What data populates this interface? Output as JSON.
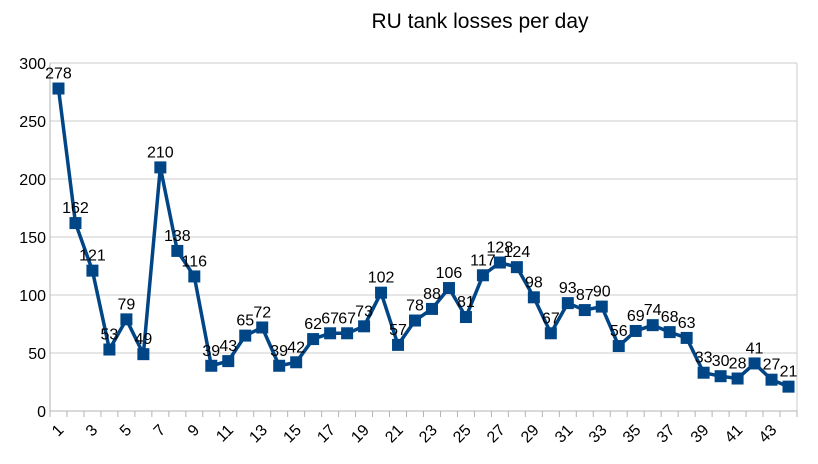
{
  "chart_data": {
    "type": "line",
    "title": "RU tank losses per day",
    "xlabel": "",
    "ylabel": "",
    "x": [
      1,
      2,
      3,
      4,
      5,
      6,
      7,
      8,
      9,
      10,
      11,
      12,
      13,
      14,
      15,
      16,
      17,
      18,
      19,
      20,
      21,
      22,
      23,
      24,
      25,
      26,
      27,
      28,
      29,
      30,
      31,
      32,
      33,
      34,
      35,
      36,
      37,
      38,
      39,
      40,
      41,
      42,
      43,
      44
    ],
    "x_tick_labels": [
      "1",
      "3",
      "5",
      "7",
      "9",
      "11",
      "13",
      "15",
      "17",
      "19",
      "21",
      "23",
      "25",
      "27",
      "29",
      "31",
      "33",
      "35",
      "37",
      "39",
      "41",
      "43"
    ],
    "values": [
      278,
      162,
      121,
      53,
      79,
      49,
      210,
      138,
      116,
      39,
      43,
      65,
      72,
      39,
      42,
      62,
      67,
      67,
      73,
      102,
      57,
      78,
      88,
      106,
      81,
      117,
      128,
      124,
      98,
      67,
      93,
      87,
      90,
      56,
      69,
      74,
      68,
      63,
      33,
      30,
      28,
      41,
      27,
      21
    ],
    "ylim": [
      0,
      300
    ],
    "y_ticks": [
      0,
      50,
      100,
      150,
      200,
      250,
      300
    ],
    "grid": true,
    "legend": "none",
    "data_labels": true,
    "marker": "square",
    "color": "#004586"
  }
}
